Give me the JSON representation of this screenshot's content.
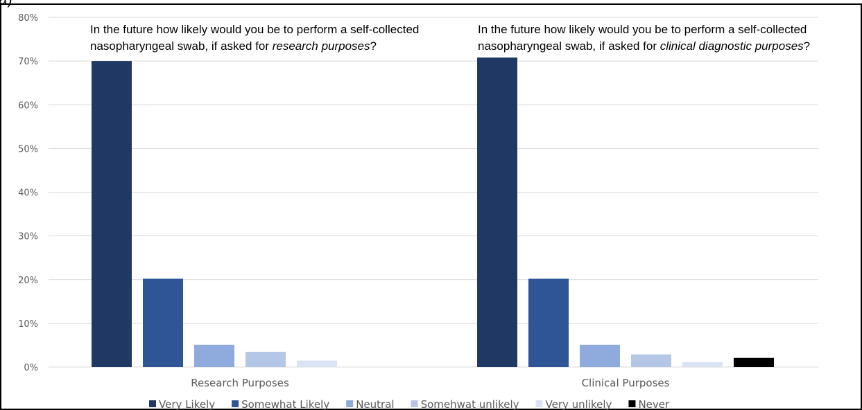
{
  "panel_label": "a)",
  "questions": [
    {
      "line1": "In the future how likely would you be to perform a self-collected",
      "line2_prefix": "nasopharyngeal swab, if asked for ",
      "line2_emphasis": "research purposes",
      "line2_suffix": "?"
    },
    {
      "line1": "In the future how likely would you be to perform a self-collected",
      "line2_prefix": "nasopharyngeal swab, if asked for ",
      "line2_emphasis": "clinical diagnostic purposes",
      "line2_suffix": "?"
    }
  ],
  "chart_data": {
    "type": "bar",
    "categories": [
      "Research Purposes",
      "Clinical Purposes"
    ],
    "series": [
      {
        "name": "Very Likely",
        "color": "#1f3864",
        "values": [
          70,
          70.8
        ]
      },
      {
        "name": "Somewhat Likely",
        "color": "#2f5597",
        "values": [
          20.2,
          20.2
        ]
      },
      {
        "name": "Neutral",
        "color": "#8faadc",
        "values": [
          5.1,
          5.1
        ]
      },
      {
        "name": "Somehwat unlikely",
        "color": "#b4c7e7",
        "values": [
          3.5,
          2.9
        ]
      },
      {
        "name": "Very unlikely",
        "color": "#dae3f3",
        "values": [
          1.5,
          1.1
        ]
      },
      {
        "name": "Never",
        "color": "#000000",
        "values": [
          0,
          2.1
        ]
      }
    ],
    "ylim": [
      0,
      80
    ],
    "yticks": [
      "0%",
      "10%",
      "20%",
      "30%",
      "40%",
      "50%",
      "60%",
      "70%",
      "80%"
    ],
    "grid": true,
    "legend_position": "bottom"
  }
}
